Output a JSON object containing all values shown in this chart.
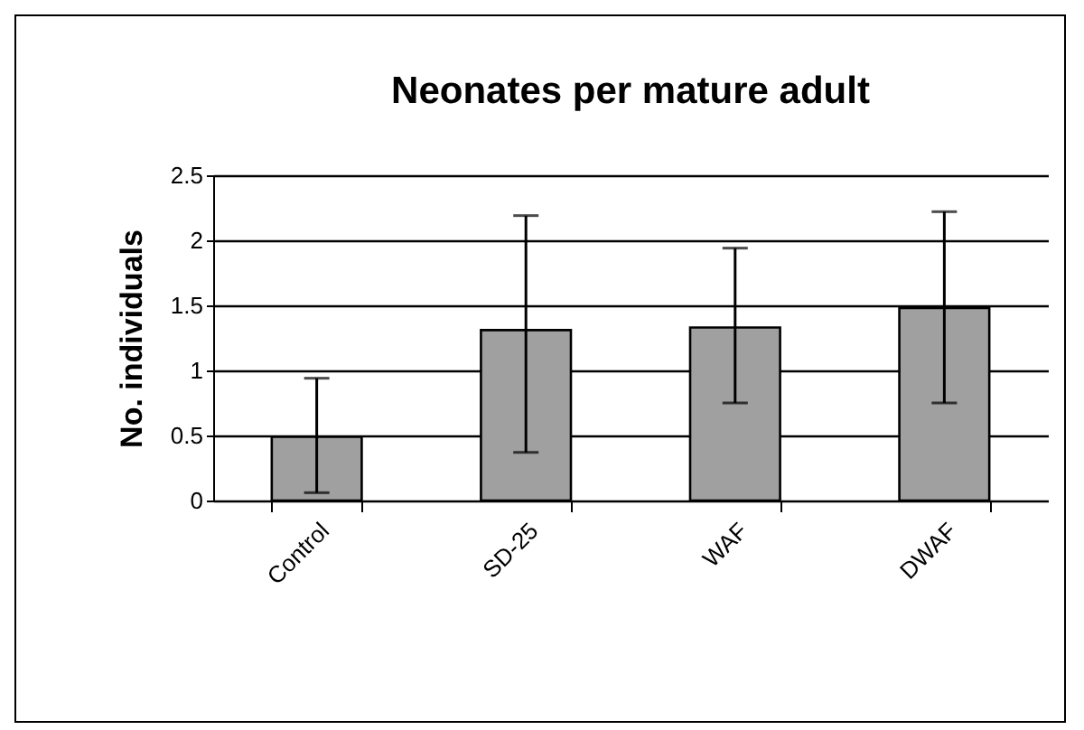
{
  "chart_data": {
    "type": "bar",
    "title": "Neonates per mature adult",
    "ylabel": "No. individuals",
    "categories": [
      "Control",
      "SD-25",
      "WAF",
      "DWAF"
    ],
    "values": [
      0.49,
      1.31,
      1.33,
      1.48
    ],
    "color": "#a0a0a0",
    "errors": [
      [
        0.06,
        0.94
      ],
      [
        0.37,
        2.19
      ],
      [
        0.75,
        1.94
      ],
      [
        0.75,
        2.22
      ]
    ],
    "ylim": [
      0,
      2.5
    ],
    "yticks": [
      0,
      0.5,
      1,
      1.5,
      2,
      2.5
    ],
    "grid": "y"
  }
}
